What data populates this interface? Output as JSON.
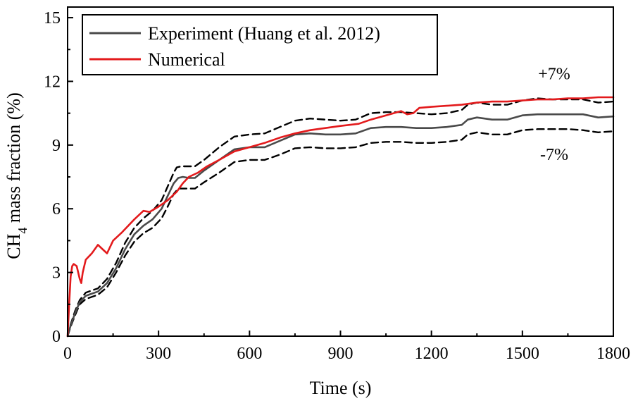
{
  "chart_data": {
    "type": "line",
    "xlabel": "Time (s)",
    "ylabel": {
      "main": "CH",
      "sub": "4",
      "rest": " mass fraction (%)"
    },
    "xlim": [
      0,
      1800
    ],
    "ylim": [
      0,
      15.5
    ],
    "xticks": [
      0,
      300,
      600,
      900,
      1200,
      1500,
      1800
    ],
    "yticks": [
      0,
      3,
      6,
      9,
      12,
      15
    ],
    "x_tick_labels": [
      "0",
      "300",
      "600",
      "900",
      "1200",
      "1500",
      "1800"
    ],
    "y_tick_labels": [
      "0",
      "3",
      "6",
      "9",
      "12",
      "15"
    ],
    "grid": false,
    "legend_position": "top-left",
    "annotations": [
      {
        "text": "+7%",
        "x": 1605,
        "y": 12.1
      },
      {
        "text": "-7%",
        "x": 1605,
        "y": 8.3
      }
    ],
    "series": [
      {
        "name": "Experiment (Huang et al. 2012)",
        "color": "#4a4a4a",
        "dash": "solid",
        "in_legend": true,
        "x": [
          0,
          10,
          25,
          40,
          60,
          80,
          100,
          130,
          160,
          190,
          220,
          250,
          280,
          310,
          330,
          350,
          365,
          380,
          400,
          420,
          450,
          500,
          550,
          600,
          650,
          700,
          750,
          800,
          850,
          900,
          950,
          1000,
          1050,
          1100,
          1150,
          1200,
          1250,
          1300,
          1320,
          1350,
          1400,
          1450,
          1500,
          1550,
          1600,
          1650,
          1700,
          1750,
          1800
        ],
        "y": [
          0,
          0.5,
          1.1,
          1.6,
          1.9,
          2.0,
          2.1,
          2.5,
          3.2,
          4.1,
          4.8,
          5.2,
          5.5,
          6.0,
          6.6,
          7.2,
          7.45,
          7.5,
          7.45,
          7.45,
          7.8,
          8.3,
          8.8,
          8.9,
          8.9,
          9.2,
          9.5,
          9.55,
          9.5,
          9.5,
          9.55,
          9.8,
          9.85,
          9.85,
          9.8,
          9.8,
          9.85,
          9.95,
          10.2,
          10.3,
          10.2,
          10.2,
          10.4,
          10.45,
          10.45,
          10.45,
          10.45,
          10.3,
          10.35
        ]
      },
      {
        "name": "Numerical",
        "color": "#e31a1c",
        "dash": "solid",
        "in_legend": true,
        "x": [
          0,
          5,
          10,
          15,
          20,
          30,
          40,
          45,
          50,
          60,
          80,
          100,
          115,
          130,
          150,
          180,
          220,
          250,
          270,
          300,
          330,
          360,
          380,
          400,
          430,
          460,
          500,
          550,
          600,
          650,
          700,
          750,
          800,
          850,
          900,
          930,
          960,
          1000,
          1050,
          1100,
          1120,
          1140,
          1160,
          1200,
          1250,
          1300,
          1350,
          1400,
          1450,
          1500,
          1550,
          1600,
          1650,
          1700,
          1750,
          1800
        ],
        "y": [
          0,
          1.5,
          2.8,
          3.3,
          3.4,
          3.3,
          2.7,
          2.5,
          3.0,
          3.6,
          3.9,
          4.3,
          4.1,
          3.9,
          4.5,
          4.9,
          5.5,
          5.9,
          5.85,
          6.1,
          6.4,
          6.8,
          7.2,
          7.5,
          7.7,
          8.0,
          8.3,
          8.7,
          8.9,
          9.1,
          9.35,
          9.55,
          9.7,
          9.8,
          9.9,
          9.95,
          10.0,
          10.2,
          10.4,
          10.6,
          10.45,
          10.5,
          10.75,
          10.8,
          10.85,
          10.9,
          11.0,
          11.05,
          11.05,
          11.1,
          11.15,
          11.15,
          11.2,
          11.2,
          11.25,
          11.25
        ]
      },
      {
        "name": "",
        "color": "#000000",
        "dash": "dashed",
        "in_legend": false,
        "x": [
          0,
          10,
          25,
          40,
          60,
          80,
          100,
          130,
          160,
          190,
          220,
          250,
          280,
          310,
          330,
          350,
          360,
          375,
          400,
          420,
          450,
          500,
          550,
          600,
          650,
          700,
          750,
          800,
          850,
          900,
          950,
          1000,
          1050,
          1100,
          1150,
          1200,
          1250,
          1300,
          1320,
          1350,
          1400,
          1450,
          1500,
          1550,
          1600,
          1650,
          1700,
          1750,
          1800
        ],
        "y": [
          0,
          0.55,
          1.2,
          1.7,
          2.05,
          2.15,
          2.25,
          2.7,
          3.45,
          4.4,
          5.1,
          5.55,
          5.9,
          6.4,
          7.05,
          7.7,
          7.95,
          8.0,
          8.0,
          8.0,
          8.3,
          8.9,
          9.4,
          9.5,
          9.55,
          9.85,
          10.15,
          10.25,
          10.2,
          10.15,
          10.2,
          10.5,
          10.55,
          10.55,
          10.5,
          10.45,
          10.5,
          10.65,
          10.9,
          11.0,
          10.9,
          10.9,
          11.1,
          11.2,
          11.15,
          11.15,
          11.15,
          11.0,
          11.05
        ]
      },
      {
        "name": "",
        "color": "#000000",
        "dash": "dashed",
        "in_legend": false,
        "x": [
          0,
          10,
          25,
          40,
          60,
          80,
          100,
          130,
          160,
          190,
          220,
          250,
          280,
          310,
          330,
          350,
          365,
          380,
          400,
          420,
          450,
          500,
          550,
          600,
          650,
          700,
          750,
          800,
          850,
          900,
          950,
          1000,
          1050,
          1100,
          1150,
          1200,
          1250,
          1300,
          1320,
          1350,
          1400,
          1450,
          1500,
          1550,
          1600,
          1650,
          1700,
          1750,
          1800
        ],
        "y": [
          0,
          0.45,
          1.0,
          1.5,
          1.75,
          1.85,
          1.95,
          2.3,
          3.0,
          3.8,
          4.45,
          4.85,
          5.1,
          5.55,
          6.1,
          6.7,
          6.95,
          6.95,
          6.95,
          6.95,
          7.25,
          7.7,
          8.2,
          8.3,
          8.3,
          8.55,
          8.85,
          8.9,
          8.85,
          8.85,
          8.9,
          9.1,
          9.15,
          9.15,
          9.1,
          9.1,
          9.15,
          9.25,
          9.5,
          9.6,
          9.5,
          9.5,
          9.7,
          9.75,
          9.75,
          9.75,
          9.7,
          9.6,
          9.65
        ]
      }
    ]
  }
}
